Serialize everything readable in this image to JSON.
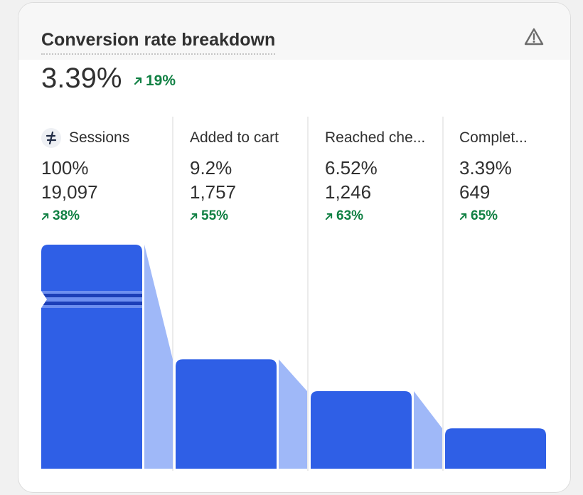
{
  "header": {
    "title": "Conversion rate breakdown",
    "warning_icon": "warning-triangle-icon"
  },
  "summary": {
    "value": "3.39%",
    "change": "19%",
    "change_direction": "up"
  },
  "chart_data": {
    "type": "bar",
    "categories": [
      "Sessions",
      "Added to cart",
      "Reached che...",
      "Complet..."
    ],
    "percent_labels": [
      "100%",
      "9.2%",
      "6.52%",
      "3.39%"
    ],
    "count_labels": [
      "19,097",
      "1,757",
      "1,246",
      "649"
    ],
    "changes": [
      "38%",
      "55%",
      "63%",
      "65%"
    ],
    "values": [
      19097,
      1757,
      1246,
      649
    ],
    "first_bar_broken_axis": true,
    "colors": {
      "bar": "#2f5fe6",
      "connector": "#9fb8f8",
      "trend_up": "#108043",
      "break_line": "#1c3fb8"
    }
  }
}
